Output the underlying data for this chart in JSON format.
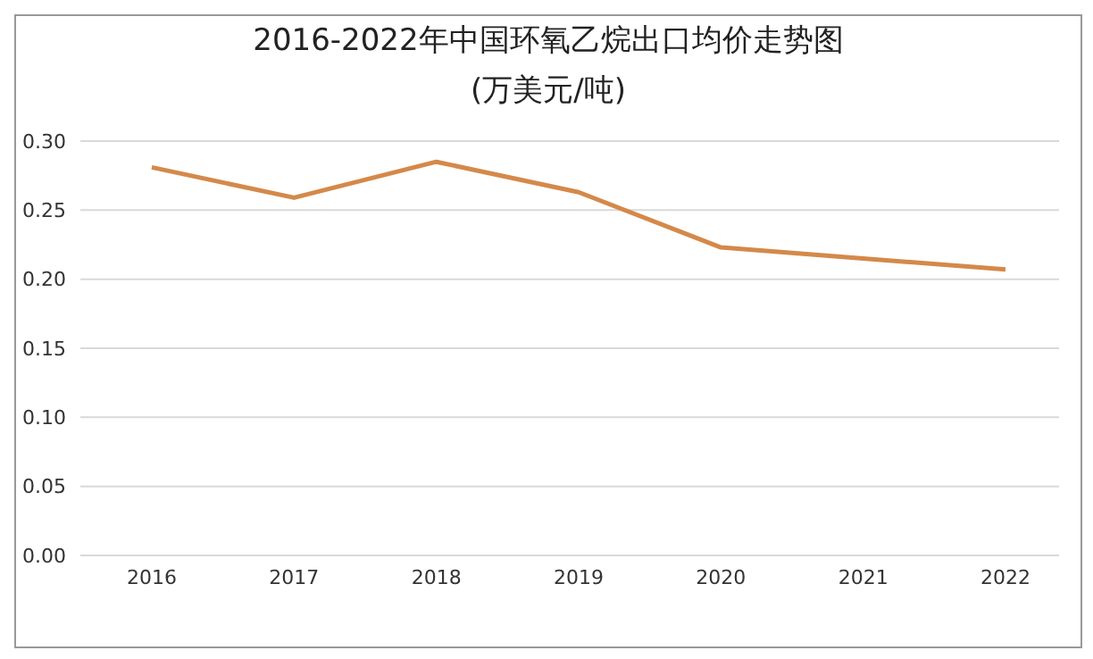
{
  "chart_data": {
    "type": "line",
    "title": "2016-2022年中国环氧乙烷出口均价走势图",
    "subtitle": "(万美元/吨)",
    "categories": [
      "2016",
      "2017",
      "2018",
      "2019",
      "2020",
      "2021",
      "2022"
    ],
    "values": [
      0.281,
      0.259,
      0.285,
      0.263,
      0.223,
      0.215,
      0.207
    ],
    "color": "#d4894a",
    "ylim": [
      0,
      0.3
    ],
    "yticks": [
      {
        "value": 0,
        "label": "0.00"
      },
      {
        "value": 0.05,
        "label": "0.05"
      },
      {
        "value": 0.1,
        "label": "0.10"
      },
      {
        "value": 0.15,
        "label": "0.15"
      },
      {
        "value": 0.2,
        "label": "0.20"
      },
      {
        "value": 0.25,
        "label": "0.25"
      },
      {
        "value": 0.3,
        "label": "0.30"
      }
    ],
    "grid": "y",
    "marker": "none",
    "line_style": "solid"
  }
}
